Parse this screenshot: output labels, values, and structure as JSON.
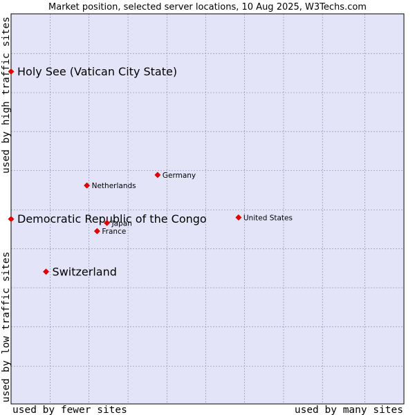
{
  "chart_data": {
    "type": "scatter",
    "title": "Market position, selected server locations, 10 Aug 2025, W3Techs.com",
    "x_label_low": "used by fewer sites",
    "x_label_high": "used by many sites",
    "y_label_low": "used by low traffic sites",
    "y_label_high": "used by high traffic sites",
    "xlim": [
      0,
      100
    ],
    "ylim": [
      0,
      100
    ],
    "grid": true,
    "colors": {
      "plot_bg": "#e4e4f8",
      "grid": "#9999bb",
      "border": "#000000",
      "marker": "#e60000"
    },
    "points": [
      {
        "label": "Holy See (Vatican City State)",
        "x": 0.0,
        "y": 85.2,
        "highlight": true
      },
      {
        "label": "Democratic Republic of the Congo",
        "x": 0.0,
        "y": 47.4,
        "highlight": true
      },
      {
        "label": "Switzerland",
        "x": 8.9,
        "y": 33.9,
        "highlight": true
      },
      {
        "label": "Netherlands",
        "x": 19.3,
        "y": 56.0,
        "highlight": false
      },
      {
        "label": "Germany",
        "x": 37.3,
        "y": 58.7,
        "highlight": false
      },
      {
        "label": "United States",
        "x": 57.9,
        "y": 47.8,
        "highlight": false
      },
      {
        "label": "Japan",
        "x": 24.4,
        "y": 46.4,
        "highlight": false
      },
      {
        "label": "France",
        "x": 21.9,
        "y": 44.3,
        "highlight": false
      }
    ]
  }
}
